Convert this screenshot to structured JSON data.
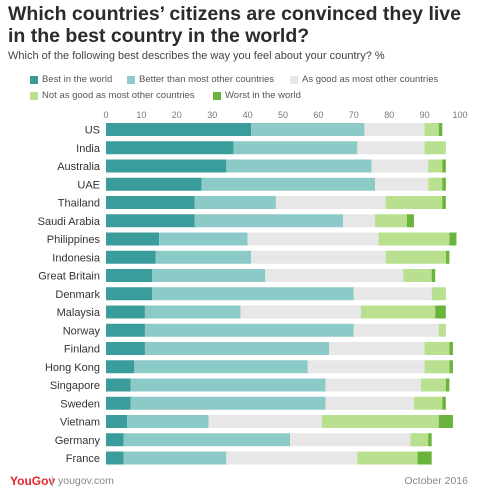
{
  "header": {
    "title": "Which countries’ citizens are convinced they live in the best country in the world?",
    "subtitle": "Which of the following best describes the way you feel about your country? %"
  },
  "footer": {
    "brand": "YouGov",
    "site": "yougov.com",
    "date": "October 2016"
  },
  "chart_data": {
    "type": "bar",
    "orientation": "horizontal",
    "stacked": true,
    "title": "Which countries’ citizens are convinced they live in the best country in the world?",
    "subtitle": "Which of the following best describes the way you feel about your country? %",
    "xlim": [
      0,
      100
    ],
    "x_ticks": [
      0,
      10,
      20,
      30,
      40,
      50,
      60,
      70,
      80,
      90,
      100
    ],
    "x_axis_position": "top",
    "grid": false,
    "legend_position": "top",
    "categories": [
      "US",
      "India",
      "Australia",
      "UAE",
      "Thailand",
      "Saudi Arabia",
      "Philippines",
      "Indonesia",
      "Great Britain",
      "Denmark",
      "Malaysia",
      "Norway",
      "Finland",
      "Hong Kong",
      "Singapore",
      "Sweden",
      "Vietnam",
      "Germany",
      "France"
    ],
    "series": [
      {
        "name": "Best in the world",
        "color": "#3a9d9b",
        "values": [
          41,
          36,
          34,
          27,
          25,
          25,
          15,
          14,
          13,
          13,
          11,
          11,
          11,
          8,
          7,
          7,
          6,
          5,
          5
        ]
      },
      {
        "name": "Better than most other countries",
        "color": "#8ccac8",
        "values": [
          32,
          35,
          41,
          49,
          23,
          42,
          25,
          27,
          32,
          57,
          27,
          59,
          52,
          49,
          55,
          55,
          23,
          47,
          29
        ]
      },
      {
        "name": "As good as most other countries",
        "color": "#e7e7e7",
        "values": [
          17,
          19,
          16,
          15,
          31,
          9,
          37,
          38,
          39,
          22,
          34,
          24,
          27,
          33,
          27,
          25,
          32,
          34,
          37
        ]
      },
      {
        "name": "Not as good as most other countries",
        "color": "#b9e08e",
        "values": [
          4,
          6,
          4,
          4,
          16,
          9,
          20,
          17,
          8,
          4,
          21,
          2,
          7,
          7,
          7,
          8,
          33,
          5,
          17
        ]
      },
      {
        "name": "Worst in the world",
        "color": "#6ab43e",
        "values": [
          1,
          0,
          1,
          1,
          1,
          2,
          2,
          1,
          1,
          0,
          3,
          0,
          1,
          1,
          1,
          1,
          4,
          1,
          4
        ]
      }
    ]
  }
}
